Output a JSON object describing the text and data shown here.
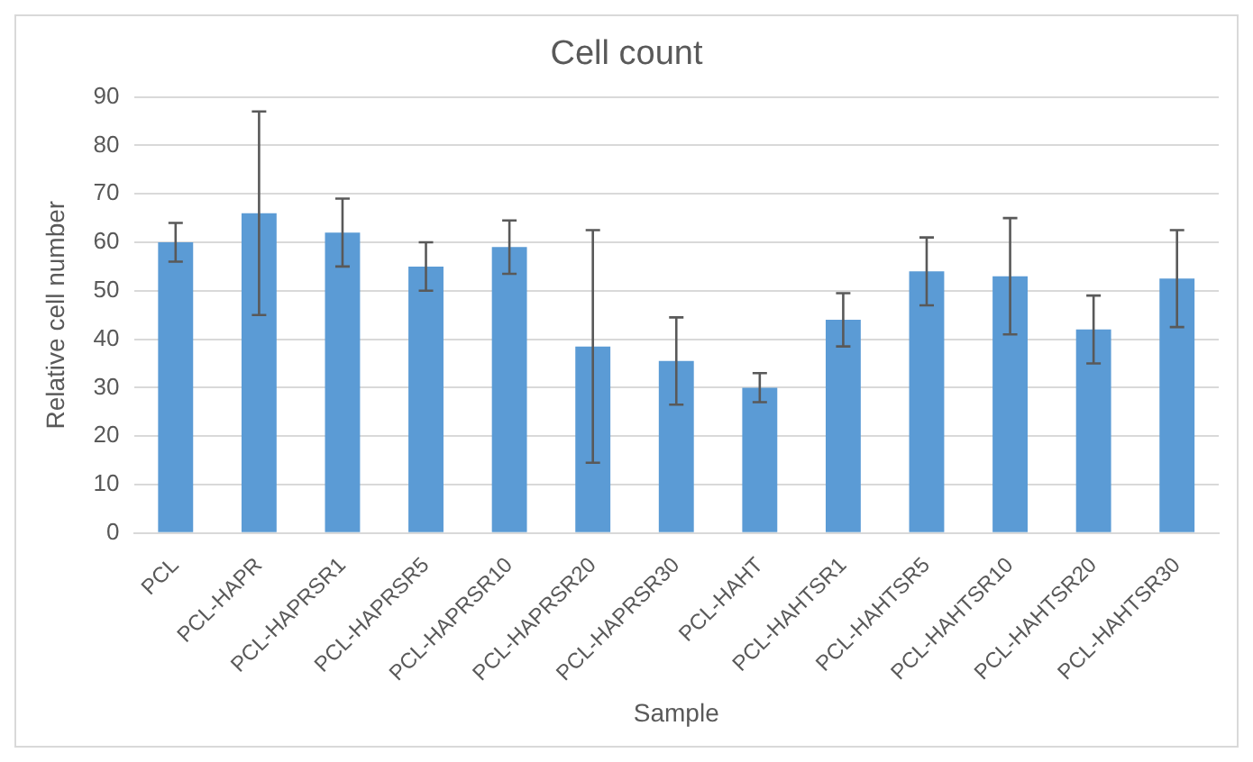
{
  "chart_data": {
    "type": "bar",
    "title": "Cell count",
    "xlabel": "Sample",
    "ylabel": "Relative cell number",
    "categories": [
      "PCL",
      "PCL-HAPR",
      "PCL-HAPRSR1",
      "PCL-HAPRSR5",
      "PCL-HAPRSR10",
      "PCL-HAPRSR20",
      "PCL-HAPRSR30",
      "PCL-HAHT",
      "PCL-HAHTSR1",
      "PCL-HAHTSR5",
      "PCL-HAHTSR10",
      "PCL-HAHTSR20",
      "PCL-HAHTSR30"
    ],
    "values": [
      60,
      66,
      62,
      55,
      59,
      38.5,
      35.5,
      30,
      44,
      54,
      53,
      42,
      52.5
    ],
    "errors": [
      4,
      21,
      7,
      5,
      5.5,
      24,
      9,
      3,
      5.5,
      7,
      12,
      7,
      10
    ],
    "color": "#5b9bd5",
    "ylim": [
      0,
      90
    ],
    "yticks": [
      0,
      10,
      20,
      30,
      40,
      50,
      60,
      70,
      80,
      90
    ],
    "grid": "y",
    "legend": false
  }
}
